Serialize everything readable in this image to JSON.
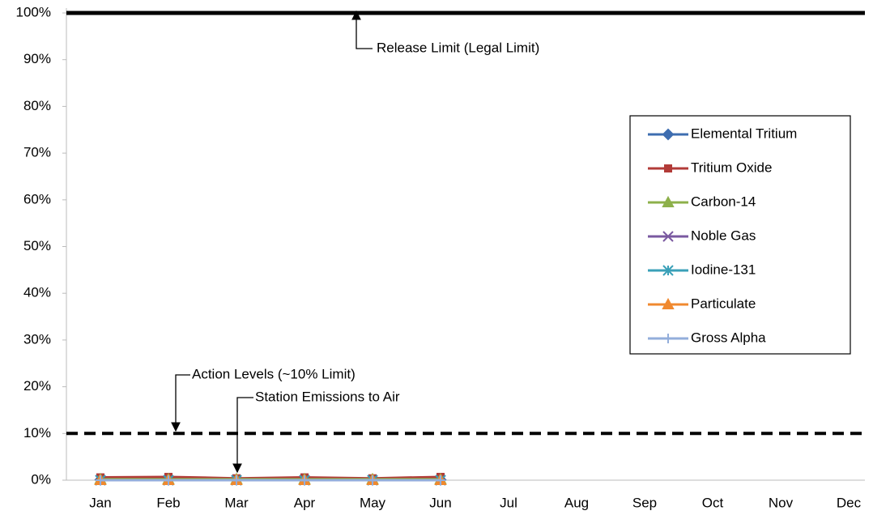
{
  "chart_data": {
    "type": "line",
    "categories": [
      "Jan",
      "Feb",
      "Mar",
      "Apr",
      "May",
      "Jun",
      "Jul",
      "Aug",
      "Sep",
      "Oct",
      "Nov",
      "Dec"
    ],
    "series": [
      {
        "name": "Elemental Tritium",
        "color": "#3e6db0",
        "marker": "diamond",
        "values": [
          0.1,
          0.1,
          0.1,
          0.1,
          0.1,
          0.1,
          null,
          null,
          null,
          null,
          null,
          null
        ]
      },
      {
        "name": "Tritium Oxide",
        "color": "#b23b38",
        "marker": "square",
        "values": [
          0.6,
          0.7,
          0.4,
          0.6,
          0.4,
          0.7,
          null,
          null,
          null,
          null,
          null,
          null
        ]
      },
      {
        "name": "Carbon-14",
        "color": "#8db04a",
        "marker": "triangle",
        "values": [
          0.2,
          0.2,
          0.2,
          0.2,
          0.2,
          0.2,
          null,
          null,
          null,
          null,
          null,
          null
        ]
      },
      {
        "name": "Noble Gas",
        "color": "#7a59a0",
        "marker": "x",
        "values": [
          0,
          0,
          0,
          0,
          0,
          0,
          null,
          null,
          null,
          null,
          null,
          null
        ]
      },
      {
        "name": "Iodine-131",
        "color": "#3aa0b8",
        "marker": "star",
        "values": [
          0,
          0,
          0,
          0,
          0,
          0,
          null,
          null,
          null,
          null,
          null,
          null
        ]
      },
      {
        "name": "Particulate",
        "color": "#f0892f",
        "marker": "triangle",
        "values": [
          0,
          0,
          0,
          0,
          0,
          0,
          null,
          null,
          null,
          null,
          null,
          null
        ]
      },
      {
        "name": "Gross Alpha",
        "color": "#93aedb",
        "marker": "plus",
        "values": [
          0,
          0,
          0,
          0,
          0,
          0,
          null,
          null,
          null,
          null,
          null,
          null
        ]
      }
    ],
    "ylim": [
      0,
      100
    ],
    "yticks": [
      {
        "value": 0,
        "label": "0%"
      },
      {
        "value": 10,
        "label": "10%"
      },
      {
        "value": 20,
        "label": "20%"
      },
      {
        "value": 30,
        "label": "30%"
      },
      {
        "value": 40,
        "label": "40%"
      },
      {
        "value": 50,
        "label": "50%"
      },
      {
        "value": 60,
        "label": "60%"
      },
      {
        "value": 70,
        "label": "70%"
      },
      {
        "value": 80,
        "label": "80%"
      },
      {
        "value": 90,
        "label": "90%"
      },
      {
        "value": 100,
        "label": "100%"
      }
    ],
    "reference_lines": [
      {
        "value": 100,
        "style": "solid"
      },
      {
        "value": 10,
        "style": "dashed"
      }
    ],
    "annotations": [
      {
        "text": "Release Limit (Legal Limit)"
      },
      {
        "text": "Action Levels (~10% Limit)"
      },
      {
        "text": "Station Emissions to Air"
      }
    ],
    "legend": "right"
  }
}
